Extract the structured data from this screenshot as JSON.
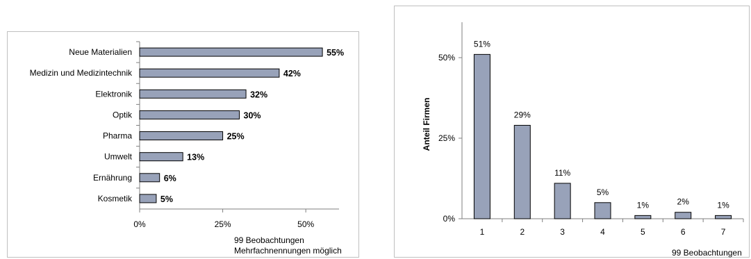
{
  "chart_data": [
    {
      "type": "bar",
      "orientation": "horizontal",
      "categories": [
        "Neue Materialien",
        "Medizin und Medizintechnik",
        "Elektronik",
        "Optik",
        "Pharma",
        "Umwelt",
        "Ernährung",
        "Kosmetik"
      ],
      "values": [
        55,
        42,
        32,
        30,
        25,
        13,
        6,
        5
      ],
      "value_labels": [
        "55%",
        "42%",
        "32%",
        "30%",
        "25%",
        "13%",
        "6%",
        "5%"
      ],
      "xlim": [
        0,
        60
      ],
      "xticks": [
        0,
        25,
        50
      ],
      "xtick_labels": [
        "0%",
        "25%",
        "50%"
      ],
      "notes": [
        "99 Beobachtungen",
        "Mehrfachnennungen möglich"
      ],
      "grid": false,
      "bar_color": "#98a2b9"
    },
    {
      "type": "bar",
      "categories": [
        "1",
        "2",
        "3",
        "4",
        "5",
        "6",
        "7"
      ],
      "values": [
        51,
        29,
        11,
        5,
        1,
        2,
        1
      ],
      "value_labels": [
        "51%",
        "29%",
        "11%",
        "5%",
        "1%",
        "2%",
        "1%"
      ],
      "ylabel": "Anteil Firmen",
      "ylim": [
        0,
        60
      ],
      "yticks": [
        0,
        25,
        50
      ],
      "ytick_labels": [
        "0%",
        "25%",
        "50%"
      ],
      "notes": [
        "99 Beobachtungen"
      ],
      "grid": false,
      "bar_color": "#98a2b9"
    }
  ]
}
